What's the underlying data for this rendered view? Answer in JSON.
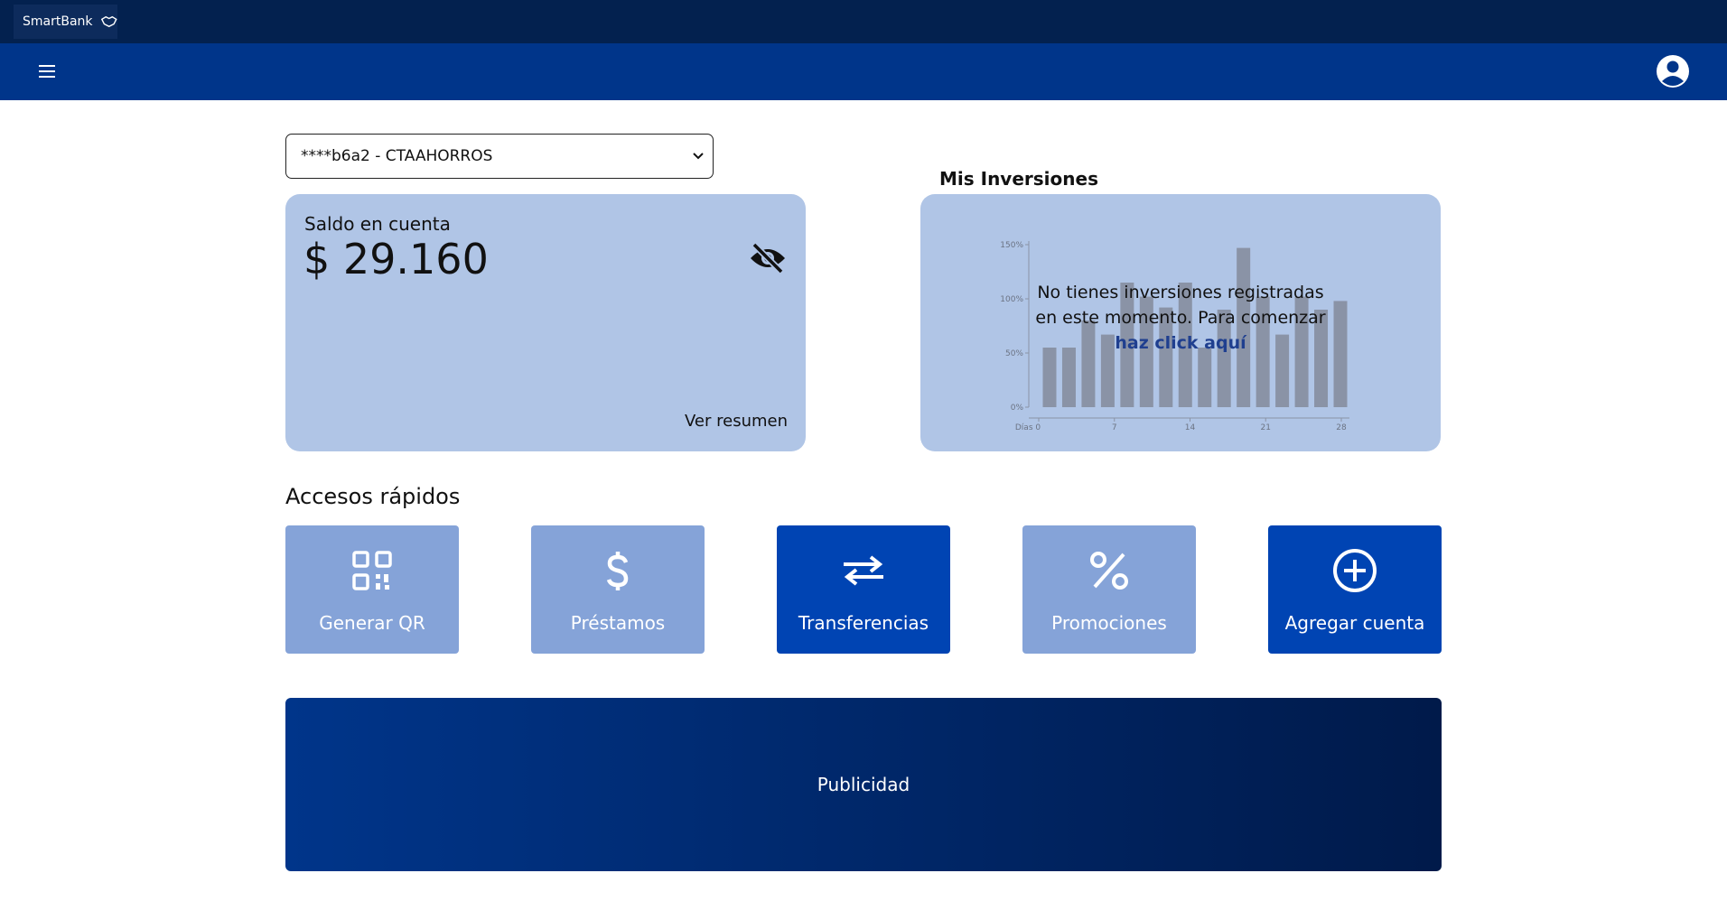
{
  "header": {
    "brand": "SmartBank"
  },
  "account_selector": {
    "selected": "****b6a2 - CTAAHORROS"
  },
  "balance_card": {
    "label": "Saldo en cuenta",
    "amount": "$ 29.160",
    "link": "Ver resumen"
  },
  "investments": {
    "title": "Mis Inversiones",
    "message": "No tienes inversiones registradas en este momento. Para comenzar",
    "link": "haz click aquí",
    "placeholder_chart": {
      "type": "bar",
      "values": [
        55,
        55,
        80,
        67,
        115,
        102,
        92,
        115,
        55,
        90,
        147,
        102,
        67,
        102,
        90,
        98
      ],
      "ylim": [
        0,
        150
      ],
      "yticks": [
        {
          "value": 0,
          "label": "0%"
        },
        {
          "value": 50,
          "label": "50%"
        },
        {
          "value": 100,
          "label": "100%"
        },
        {
          "value": 150,
          "label": "150%"
        }
      ],
      "xlim": [
        0,
        28
      ],
      "xticks": [
        {
          "value": 0,
          "label": "Días 0"
        },
        7,
        14,
        21,
        28
      ]
    }
  },
  "quick_access": {
    "title": "Accesos rápidos",
    "items": [
      "Generar QR",
      "Préstamos",
      "Transferencias",
      "Promociones",
      "Agregar cuenta"
    ]
  },
  "banner": {
    "text": "Publicidad"
  }
}
